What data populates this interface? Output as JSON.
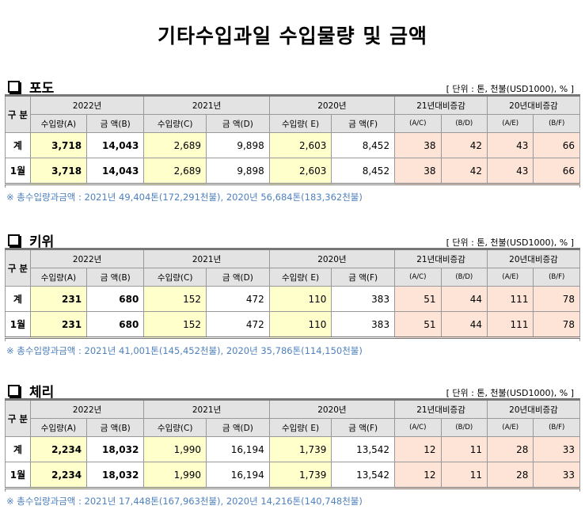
{
  "title": "기타수입과일 수입물량 및 금액",
  "unit_label": "[ 단위 : 톤, 천불(USD1000), % ]",
  "header": {
    "gubun": "구 분",
    "y2022": "2022년",
    "y2021": "2021년",
    "y2020": "2020년",
    "cmp21": "21년대비증감",
    "cmp20": "20년대비증감",
    "qtyA": "수입량(A)",
    "amtB": "금 액(B)",
    "qtyC": "수입량(C)",
    "amtD": "금 액(D)",
    "qtyE": "수입량( E)",
    "amtF": "금 액(F)",
    "ac": "(A/C)",
    "bd": "(B/D)",
    "ae": "(A/E)",
    "bf": "(B/F)"
  },
  "sections": [
    {
      "name": "포도",
      "rows": [
        {
          "label": "계",
          "a": "3,718",
          "b": "14,043",
          "c": "2,689",
          "d": "9,898",
          "e": "2,603",
          "f": "8,452",
          "ac": "38",
          "bd": "42",
          "ae": "43",
          "bf": "66"
        },
        {
          "label": "1월",
          "a": "3,718",
          "b": "14,043",
          "c": "2,689",
          "d": "9,898",
          "e": "2,603",
          "f": "8,452",
          "ac": "38",
          "bd": "42",
          "ae": "43",
          "bf": "66"
        }
      ],
      "note": "※ 총수입량과금액 : 2021년 49,404톤(172,291천불),  2020년 56,684톤(183,362천불)"
    },
    {
      "name": "키위",
      "rows": [
        {
          "label": "계",
          "a": "231",
          "b": "680",
          "c": "152",
          "d": "472",
          "e": "110",
          "f": "383",
          "ac": "51",
          "bd": "44",
          "ae": "111",
          "bf": "78"
        },
        {
          "label": "1월",
          "a": "231",
          "b": "680",
          "c": "152",
          "d": "472",
          "e": "110",
          "f": "383",
          "ac": "51",
          "bd": "44",
          "ae": "111",
          "bf": "78"
        }
      ],
      "note": "※ 총수입량과금액 : 2021년 41,001톤(145,452천불), 2020년 35,786톤(114,150천불)"
    },
    {
      "name": "체리",
      "rows": [
        {
          "label": "계",
          "a": "2,234",
          "b": "18,032",
          "c": "1,990",
          "d": "16,194",
          "e": "1,739",
          "f": "13,542",
          "ac": "12",
          "bd": "11",
          "ae": "28",
          "bf": "33"
        },
        {
          "label": "1월",
          "a": "2,234",
          "b": "18,032",
          "c": "1,990",
          "d": "16,194",
          "e": "1,739",
          "f": "13,542",
          "ac": "12",
          "bd": "11",
          "ae": "28",
          "bf": "33"
        }
      ],
      "note": "※ 총수입량과금액 : 2021년 17,448톤(167,963천불), 2020년 14,216톤(140,748천불)"
    }
  ]
}
